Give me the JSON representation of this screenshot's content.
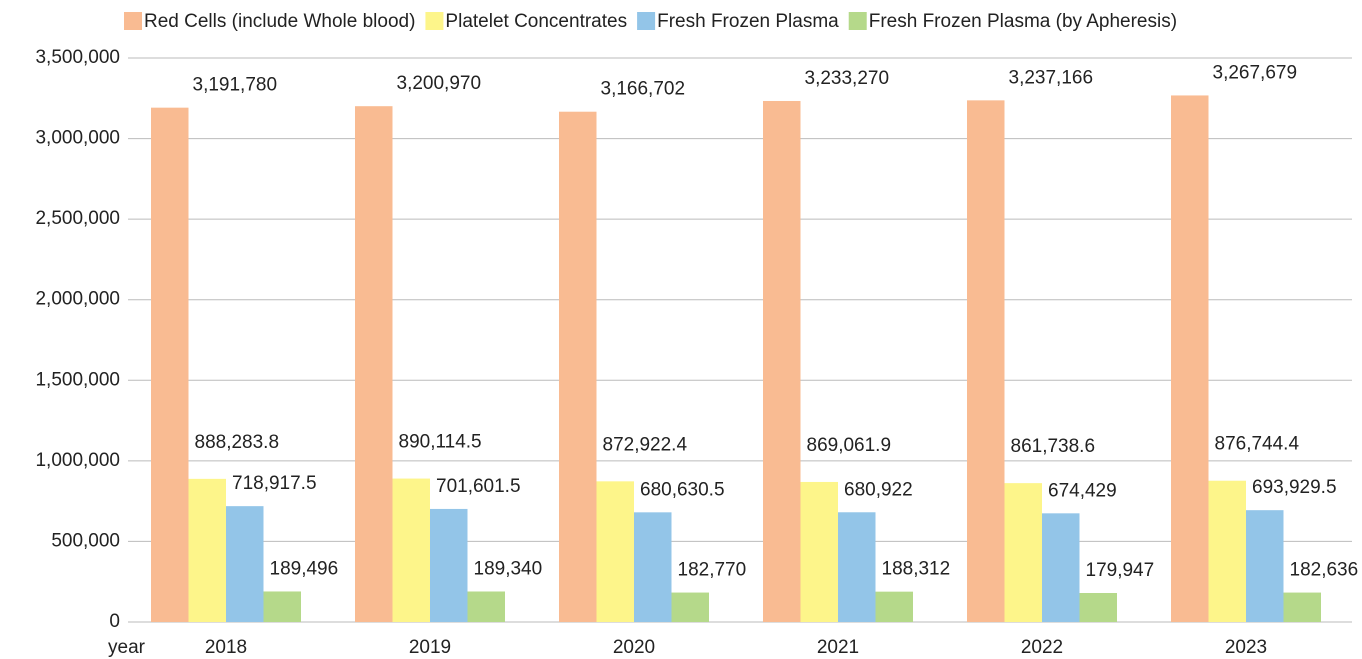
{
  "chart_data": {
    "type": "bar",
    "x_label": "year",
    "categories": [
      "2018",
      "2019",
      "2020",
      "2021",
      "2022",
      "2023"
    ],
    "series": [
      {
        "name": "Red Cells (include Whole blood)",
        "color": "#f9bb92",
        "values": [
          3191780,
          3200970,
          3166702,
          3233270,
          3237166,
          3267679
        ],
        "value_labels": [
          "3,191,780",
          "3,200,970",
          "3,166,702",
          "3,233,270",
          "3,237,166",
          "3,267,679"
        ]
      },
      {
        "name": "Platelet Concentrates",
        "color": "#fdf58a",
        "values": [
          888283.8,
          890114.5,
          872922.4,
          869061.9,
          861738.6,
          876744.4
        ],
        "value_labels": [
          "888,283.8",
          "890,114.5",
          "872,922.4",
          "869,061.9",
          "861,738.6",
          "876,744.4"
        ]
      },
      {
        "name": "Fresh Frozen Plasma",
        "color": "#93c5e8",
        "values": [
          718917.5,
          701601.5,
          680630.5,
          680922,
          674429,
          693929.5
        ],
        "value_labels": [
          "718,917.5",
          "701,601.5",
          "680,630.5",
          "680,922",
          "674,429",
          "693,929.5"
        ]
      },
      {
        "name": "Fresh Frozen Plasma (by Apheresis)",
        "color": "#b5d98a",
        "values": [
          189496,
          189340,
          182770,
          188312,
          179947,
          182636
        ],
        "value_labels": [
          "189,496",
          "189,340",
          "182,770",
          "188,312",
          "179,947",
          "182,636"
        ]
      }
    ],
    "ylim": [
      0,
      3500000
    ],
    "yticks": [
      0,
      {
        "value": 500000,
        "label": "500,000"
      },
      {
        "value": 1000000,
        "label": "1,000,000"
      },
      {
        "value": 1500000,
        "label": "1,500,000"
      },
      {
        "value": 2000000,
        "label": "2,000,000"
      },
      {
        "value": 2500000,
        "label": "2,500,000"
      },
      {
        "value": 3000000,
        "label": "3,000,000"
      },
      {
        "value": 3500000,
        "label": "3,500,000"
      }
    ],
    "grid": true,
    "legend": "top"
  }
}
